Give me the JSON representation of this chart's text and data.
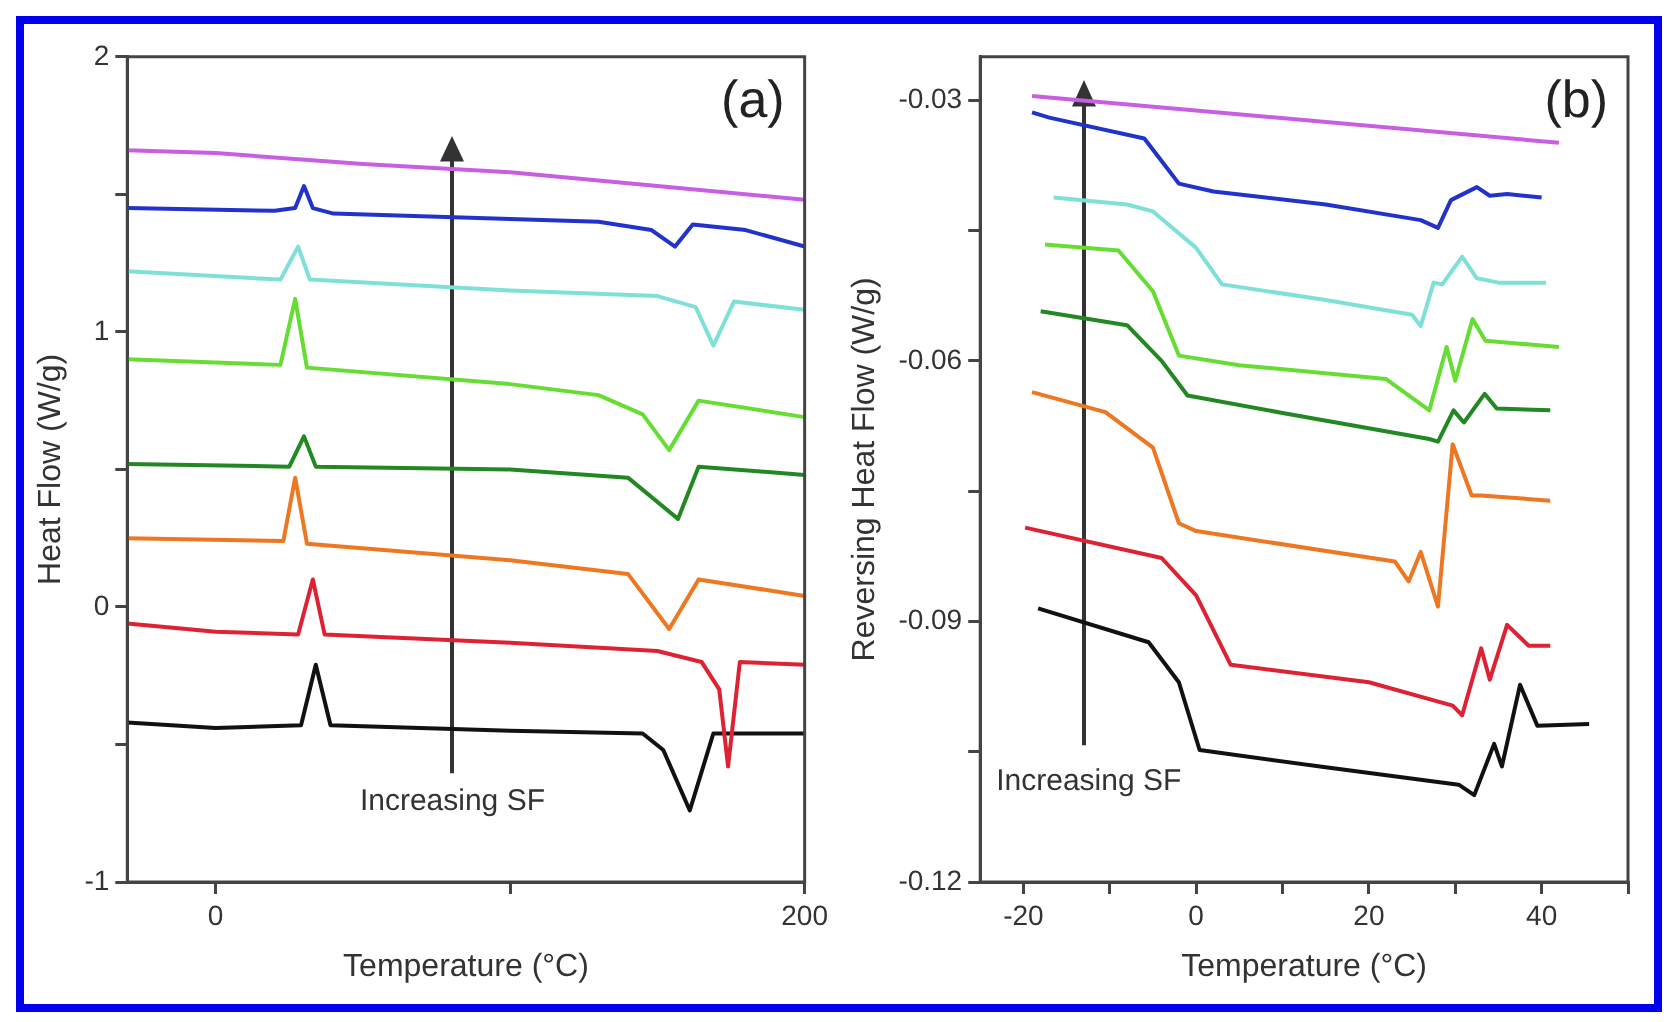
{
  "chart_data": [
    {
      "type": "line",
      "title": "(a)",
      "xlabel": "Temperature (°C)",
      "ylabel": "Heat Flow (W/g)",
      "xlim": [
        -30,
        200
      ],
      "xticks": [
        0,
        {
          "value": 100,
          "label": null
        },
        200
      ],
      "ylim": [
        -1,
        2
      ],
      "yticks": [
        -1,
        {
          "value": -0.5,
          "label": null
        },
        0,
        {
          "value": 0.5,
          "label": null
        },
        1,
        {
          "value": 1.5,
          "label": null
        },
        2
      ],
      "grid": false,
      "legend": false,
      "marker": "none",
      "line_style": "solid",
      "annotations": [
        "Increasing SF"
      ],
      "series": [
        {
          "color": "#c85ee0",
          "x": [
            -30,
            0,
            50,
            100,
            150,
            200
          ],
          "values": [
            1.66,
            1.65,
            1.61,
            1.58,
            1.53,
            1.48
          ]
        },
        {
          "color": "#2233cc",
          "x": [
            -30,
            20,
            27,
            30,
            33,
            40,
            100,
            130,
            148,
            156,
            162,
            180,
            200
          ],
          "values": [
            1.45,
            1.44,
            1.45,
            1.53,
            1.45,
            1.43,
            1.41,
            1.4,
            1.37,
            1.31,
            1.39,
            1.37,
            1.31
          ]
        },
        {
          "color": "#7fe0d8",
          "x": [
            -30,
            22,
            28,
            32,
            100,
            150,
            163,
            169,
            176,
            200
          ],
          "values": [
            1.22,
            1.19,
            1.31,
            1.19,
            1.15,
            1.13,
            1.09,
            0.95,
            1.11,
            1.08
          ]
        },
        {
          "color": "#66dd33",
          "x": [
            -30,
            22,
            27,
            31,
            100,
            130,
            145,
            154,
            164,
            200
          ],
          "values": [
            0.9,
            0.88,
            1.12,
            0.87,
            0.81,
            0.77,
            0.7,
            0.57,
            0.75,
            0.69
          ]
        },
        {
          "color": "#228822",
          "x": [
            -30,
            25,
            30,
            34,
            100,
            140,
            157,
            164,
            200
          ],
          "values": [
            0.52,
            0.51,
            0.62,
            0.51,
            0.5,
            0.47,
            0.32,
            0.51,
            0.48
          ]
        },
        {
          "color": "#ee7722",
          "x": [
            -30,
            23,
            27,
            31,
            100,
            140,
            154,
            164,
            200
          ],
          "values": [
            0.25,
            0.24,
            0.47,
            0.23,
            0.17,
            0.12,
            -0.08,
            0.1,
            0.04
          ]
        },
        {
          "color": "#dd2233",
          "x": [
            -30,
            0,
            28,
            33,
            37,
            100,
            150,
            165,
            171,
            174,
            178,
            200
          ],
          "values": [
            -0.06,
            -0.09,
            -0.1,
            0.1,
            -0.1,
            -0.13,
            -0.16,
            -0.2,
            -0.3,
            -0.58,
            -0.2,
            -0.21
          ]
        },
        {
          "color": "#111111",
          "x": [
            -30,
            0,
            29,
            34,
            39,
            100,
            145,
            152,
            161,
            169,
            200
          ],
          "values": [
            -0.42,
            -0.44,
            -0.43,
            -0.21,
            -0.43,
            -0.45,
            -0.46,
            -0.52,
            -0.74,
            -0.46,
            -0.46
          ]
        }
      ]
    },
    {
      "type": "line",
      "title": "(b)",
      "xlabel": "Temperature (°C)",
      "ylabel": "Reversing Heat Flow (W/g)",
      "xlim": [
        -25,
        50
      ],
      "xticks": [
        -20,
        {
          "value": -10,
          "label": null
        },
        0,
        {
          "value": 10,
          "label": null
        },
        20,
        {
          "value": 30,
          "label": null
        },
        40,
        {
          "value": 50,
          "label": null
        }
      ],
      "ylim": [
        -0.12,
        -0.025
      ],
      "yticks": [
        -0.12,
        {
          "value": -0.105,
          "label": null
        },
        -0.09,
        {
          "value": -0.075,
          "label": null
        },
        -0.06,
        {
          "value": -0.045,
          "label": null
        },
        -0.03
      ],
      "grid": false,
      "legend": false,
      "marker": "none",
      "line_style": "solid",
      "annotations": [
        "Increasing SF"
      ],
      "series": [
        {
          "color": "#c85ee0",
          "x": [
            -19,
            42
          ],
          "values": [
            -0.0295,
            -0.0349
          ]
        },
        {
          "color": "#2233cc",
          "x": [
            -19,
            -17,
            -6,
            -4,
            -2,
            2,
            15,
            26,
            28,
            29.5,
            32.5,
            34,
            36,
            40
          ],
          "values": [
            -0.0314,
            -0.032,
            -0.0344,
            -0.037,
            -0.0396,
            -0.0405,
            -0.042,
            -0.0438,
            -0.0447,
            -0.0415,
            -0.04,
            -0.041,
            -0.0408,
            -0.0412
          ]
        },
        {
          "color": "#7fe0d8",
          "x": [
            -16.5,
            -8,
            -5,
            0,
            3,
            15,
            25,
            26,
            27.5,
            28.5,
            30.8,
            32.5,
            35,
            40.5
          ],
          "values": [
            -0.0412,
            -0.042,
            -0.0428,
            -0.047,
            -0.0512,
            -0.053,
            -0.0547,
            -0.056,
            -0.051,
            -0.0512,
            -0.048,
            -0.0505,
            -0.051,
            -0.051
          ]
        },
        {
          "color": "#66dd33",
          "x": [
            -17.5,
            -9,
            -5,
            -2,
            5,
            22,
            27,
            29,
            30,
            32,
            33.5,
            42
          ],
          "values": [
            -0.0466,
            -0.0473,
            -0.052,
            -0.0594,
            -0.0605,
            -0.0621,
            -0.0657,
            -0.0584,
            -0.0623,
            -0.0552,
            -0.0577,
            -0.0584
          ]
        },
        {
          "color": "#228822",
          "x": [
            -18,
            -8,
            -4,
            -1,
            10,
            27,
            28,
            29.8,
            31,
            33.4,
            34.8,
            41
          ],
          "values": [
            -0.0543,
            -0.0559,
            -0.06,
            -0.064,
            -0.066,
            -0.069,
            -0.0693,
            -0.0657,
            -0.0671,
            -0.0638,
            -0.0655,
            -0.0657
          ]
        },
        {
          "color": "#ee7722",
          "x": [
            -19,
            -10.5,
            -5,
            -2,
            0,
            23,
            24.6,
            26,
            28,
            29.7,
            31.9,
            33,
            41
          ],
          "values": [
            -0.0636,
            -0.0659,
            -0.07,
            -0.0787,
            -0.0796,
            -0.0831,
            -0.0854,
            -0.082,
            -0.0883,
            -0.0696,
            -0.0755,
            -0.0755,
            -0.0761
          ]
        },
        {
          "color": "#dd2233",
          "x": [
            -19.8,
            -4,
            0,
            4,
            20,
            29.7,
            30.8,
            33,
            34,
            36,
            38.5,
            41
          ],
          "values": [
            -0.0792,
            -0.0827,
            -0.087,
            -0.095,
            -0.097,
            -0.0997,
            -0.1008,
            -0.0931,
            -0.0967,
            -0.0904,
            -0.0928,
            -0.0928
          ]
        },
        {
          "color": "#111111",
          "x": [
            -18.3,
            -5.5,
            -2,
            0.4,
            15,
            30.4,
            32.2,
            34.5,
            35.4,
            37.5,
            39.5,
            45.5
          ],
          "values": [
            -0.0885,
            -0.0924,
            -0.097,
            -0.1048,
            -0.1068,
            -0.1088,
            -0.11,
            -0.1041,
            -0.1067,
            -0.0973,
            -0.102,
            -0.1018
          ]
        }
      ]
    }
  ]
}
